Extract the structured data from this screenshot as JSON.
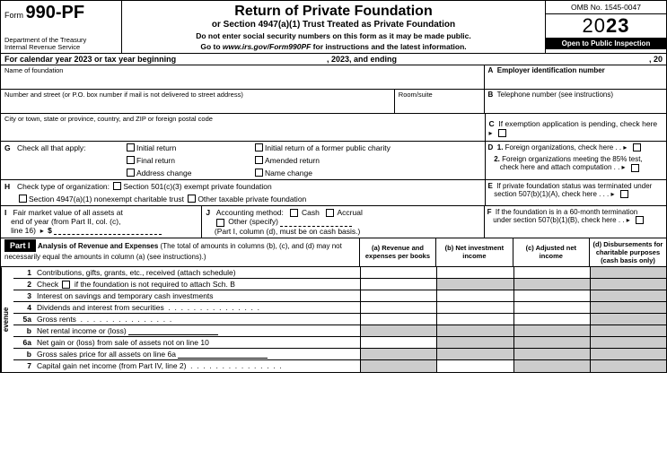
{
  "header": {
    "form_label": "Form",
    "form_no": "990-PF",
    "dept1": "Department of the Treasury",
    "dept2": "Internal Revenue Service",
    "title": "Return of Private Foundation",
    "subtitle": "or Section 4947(a)(1) Trust Treated as Private Foundation",
    "instr1": "Do not enter social security numbers on this form as it may be made public.",
    "instr2_pre": "Go to ",
    "instr2_url": "www.irs.gov/Form990PF",
    "instr2_post": " for instructions and the latest information.",
    "omb": "OMB No. 1545-0047",
    "year_prefix": "20",
    "year_bold": "23",
    "open": "Open to Public Inspection"
  },
  "cal": {
    "p1": "For calendar year 2023 or tax year beginning",
    "p2": ", 2023, and ending",
    "p3": ", 20"
  },
  "id": {
    "name": "Name of foundation",
    "ein_lbl": "A",
    "ein": "Employer identification number",
    "addr": "Number and street (or P.O. box number if mail is not delivered to street address)",
    "room": "Room/suite",
    "tel_lbl": "B",
    "tel": "Telephone number (see instructions)",
    "city": "City or town, state or province, country, and ZIP or foreign postal code",
    "exempt_lbl": "C",
    "exempt": "If exemption application is pending, check here"
  },
  "g": {
    "lbl": "G",
    "txt": "Check all that apply:",
    "o1": "Initial return",
    "o2": "Initial return of a former public charity",
    "o3": "Final return",
    "o4": "Amended return",
    "o5": "Address change",
    "o6": "Name change"
  },
  "h": {
    "lbl": "H",
    "txt": "Check type of organization:",
    "o1": "Section 501(c)(3) exempt private foundation",
    "o2": "Section 4947(a)(1) nonexempt charitable trust",
    "o3": "Other taxable private foundation"
  },
  "d": {
    "lbl": "D",
    "n1": "1.",
    "t1": "Foreign organizations, check here",
    "n2": "2.",
    "t2a": "Foreign organizations meeting the 85% test,",
    "t2b": "check here and attach computation"
  },
  "e": {
    "lbl": "E",
    "t1": "If private foundation status was terminated under",
    "t2": "section 507(b)(1)(A), check here"
  },
  "f": {
    "lbl": "F",
    "t1": "If the foundation is in a 60-month termination",
    "t2": "under section 507(b)(1)(B), check here"
  },
  "i": {
    "lbl": "I",
    "t1": "Fair market value of all assets at",
    "t2": "end of year (from Part II, col. (c),",
    "t3": "line 16)",
    "sym": "$"
  },
  "j": {
    "lbl": "J",
    "t": "Accounting method:",
    "o1": "Cash",
    "o2": "Accrual",
    "o3": "Other (specify)",
    "note": "(Part I, column (d), must be on cash basis.)"
  },
  "part1": {
    "tag": "Part I",
    "title": "Analysis of Revenue and Expenses",
    "desc": "(The total of amounts in columns (b), (c), and (d) may not necessarily equal the amounts in column (a) (see instructions).)",
    "cols": {
      "a": "(a) Revenue and expenses per books",
      "b": "(b) Net investment income",
      "c": "(c) Adjusted net income",
      "d": "(d) Disbursements for charitable purposes (cash basis only)"
    }
  },
  "lines": [
    {
      "n": "1",
      "t": "Contributions, gifts, grants, etc., received (attach schedule)",
      "gray": [
        3
      ]
    },
    {
      "n": "2",
      "t": "Check ☐ if the foundation is not required to attach Sch. B",
      "gray": [
        1,
        2,
        3
      ],
      "ck": true
    },
    {
      "n": "3",
      "t": "Interest on savings and temporary cash investments",
      "gray": [
        3
      ]
    },
    {
      "n": "4",
      "t": "Dividends and interest from securities",
      "gray": [
        3
      ],
      "dots": true
    },
    {
      "n": "5a",
      "t": "Gross rents",
      "gray": [
        3
      ],
      "dots": true
    },
    {
      "n": "b",
      "t": "Net rental income or (loss)",
      "gray": [
        0,
        1,
        2,
        3
      ],
      "indent": true,
      "uline": true
    },
    {
      "n": "6a",
      "t": "Net gain or (loss) from sale of assets not on line 10",
      "gray": [
        1,
        2,
        3
      ]
    },
    {
      "n": "b",
      "t": "Gross sales price for all assets on line 6a",
      "gray": [
        0,
        1,
        2,
        3
      ],
      "indent": true,
      "uline": true
    },
    {
      "n": "7",
      "t": "Capital gain net income (from Part IV, line 2)",
      "gray": [
        0,
        2,
        3
      ],
      "dots": true
    }
  ],
  "side_label": "evenue"
}
